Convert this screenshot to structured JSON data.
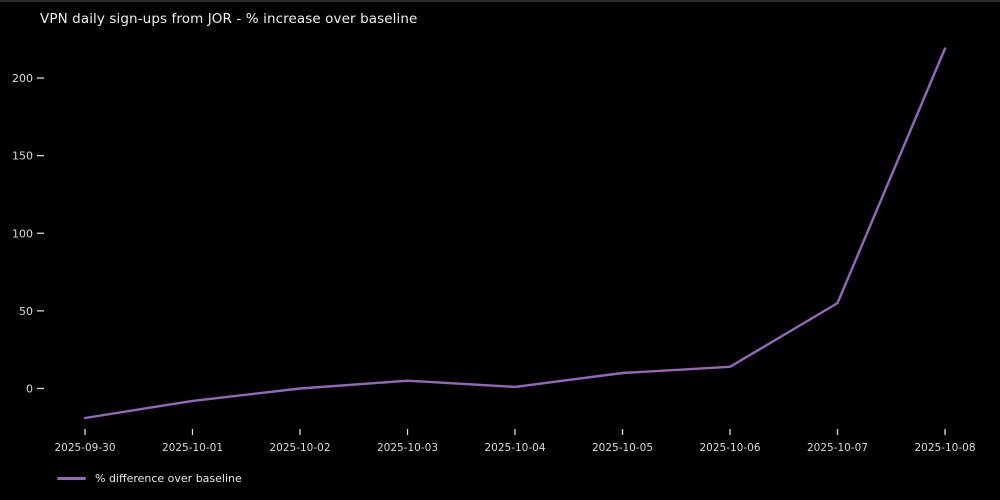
{
  "window": {
    "background_color": "#000000",
    "top_edge_color": "#2b2b2b",
    "text_color": "#f0f0f0",
    "tick_color": "#d9d9d9"
  },
  "chart_data": {
    "type": "line",
    "title": "VPN daily sign-ups from JOR - % increase over baseline",
    "categories": [
      "2025-09-30",
      "2025-10-01",
      "2025-10-02",
      "2025-10-03",
      "2025-10-04",
      "2025-10-05",
      "2025-10-06",
      "2025-10-07",
      "2025-10-08"
    ],
    "series": [
      {
        "name": "% difference over baseline",
        "values": [
          -19,
          -8,
          0,
          5,
          1,
          10,
          14,
          55,
          219
        ],
        "color": "#9467bd"
      }
    ],
    "xlabel": "",
    "ylabel": "",
    "yticks": [
      0,
      50,
      100,
      150,
      200
    ],
    "ylim": [
      -23,
      225
    ],
    "grid": false,
    "legend_position": "lower-left",
    "plot_background": "#000000"
  }
}
